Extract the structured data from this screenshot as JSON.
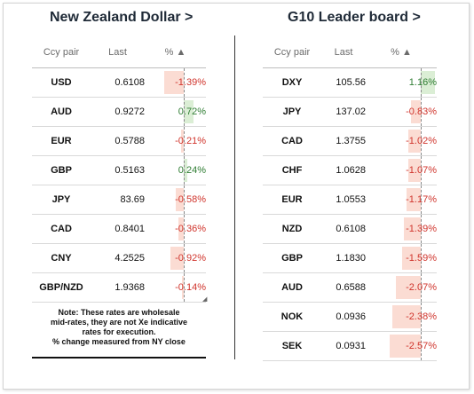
{
  "left_panel": {
    "title": "New Zealand Dollar >",
    "headers": {
      "pair": "Ccy pair",
      "last": "Last",
      "pct": "% ▲"
    },
    "rows": [
      {
        "pair": "USD",
        "last": "0.6108",
        "pct": "-1.39%",
        "change": -1.39
      },
      {
        "pair": "AUD",
        "last": "0.9272",
        "pct": "0.72%",
        "change": 0.72
      },
      {
        "pair": "EUR",
        "last": "0.5788",
        "pct": "-0.21%",
        "change": -0.21
      },
      {
        "pair": "GBP",
        "last": "0.5163",
        "pct": "0.24%",
        "change": 0.24
      },
      {
        "pair": "JPY",
        "last": "83.69",
        "pct": "-0.58%",
        "change": -0.58
      },
      {
        "pair": "CAD",
        "last": "0.8401",
        "pct": "-0.36%",
        "change": -0.36
      },
      {
        "pair": "CNY",
        "last": "4.2525",
        "pct": "-0.92%",
        "change": -0.92
      },
      {
        "pair": "GBP/NZD",
        "last": "1.9368",
        "pct": "-0.14%",
        "change": -0.14
      }
    ],
    "note": [
      "Note: These rates are wholesale",
      "mid-rates, they are not Xe indicative",
      "rates for execution.",
      "% change measured from NY close"
    ]
  },
  "right_panel": {
    "title": "G10 Leader board >",
    "headers": {
      "pair": "Ccy pair",
      "last": "Last",
      "pct": "%  ▲"
    },
    "rows": [
      {
        "pair": "DXY",
        "last": "105.56",
        "pct": "1.16%",
        "change": 1.16
      },
      {
        "pair": "JPY",
        "last": "137.02",
        "pct": "-0.83%",
        "change": -0.83
      },
      {
        "pair": "CAD",
        "last": "1.3755",
        "pct": "-1.02%",
        "change": -1.02
      },
      {
        "pair": "CHF",
        "last": "1.0628",
        "pct": "-1.07%",
        "change": -1.07
      },
      {
        "pair": "EUR",
        "last": "1.0553",
        "pct": "-1.17%",
        "change": -1.17
      },
      {
        "pair": "NZD",
        "last": "0.6108",
        "pct": "-1.39%",
        "change": -1.39
      },
      {
        "pair": "GBP",
        "last": "1.1830",
        "pct": "-1.59%",
        "change": -1.59
      },
      {
        "pair": "AUD",
        "last": "0.6588",
        "pct": "-2.07%",
        "change": -2.07
      },
      {
        "pair": "NOK",
        "last": "0.0936",
        "pct": "-2.38%",
        "change": -2.38
      },
      {
        "pair": "SEK",
        "last": "0.0931",
        "pct": "-2.57%",
        "change": -2.57
      }
    ]
  },
  "colors": {
    "negative_text": "#d0342c",
    "positive_text": "#2f7d33",
    "negative_bar": "#fbdcd3",
    "positive_bar": "#dbeed5"
  }
}
